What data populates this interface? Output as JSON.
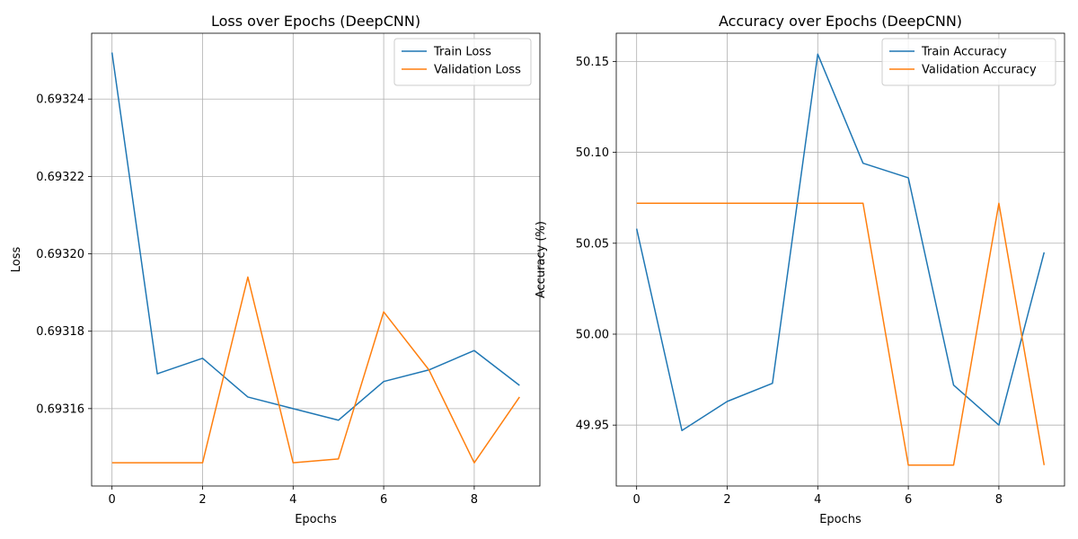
{
  "chart_data": [
    {
      "type": "line",
      "title": "Loss over Epochs (DeepCNN)",
      "xlabel": "Epochs",
      "ylabel": "Loss",
      "x": [
        0,
        1,
        2,
        3,
        4,
        5,
        6,
        7,
        8,
        9
      ],
      "xlim": [
        -0.45,
        9.45
      ],
      "ylim": [
        0.69314,
        0.693257
      ],
      "xticks": [
        0,
        2,
        4,
        6,
        8
      ],
      "xtick_labels": [
        "0",
        "2",
        "4",
        "6",
        "8"
      ],
      "yticks": [
        0.69316,
        0.69318,
        0.6932,
        0.69322,
        0.69324
      ],
      "ytick_labels": [
        "0.69316",
        "0.69318",
        "0.69320",
        "0.69322",
        "0.69324"
      ],
      "grid": true,
      "legend_position": "top-right",
      "series": [
        {
          "name": "Train Loss",
          "color": "#1f77b4",
          "values": [
            0.693252,
            0.693169,
            0.693173,
            0.693163,
            0.69316,
            0.693157,
            0.693167,
            0.69317,
            0.693175,
            0.693166
          ]
        },
        {
          "name": "Validation Loss",
          "color": "#ff7f0e",
          "values": [
            0.693146,
            0.693146,
            0.693146,
            0.693194,
            0.693146,
            0.693147,
            0.693185,
            0.69317,
            0.693146,
            0.693163
          ]
        }
      ]
    },
    {
      "type": "line",
      "title": "Accuracy over Epochs (DeepCNN)",
      "xlabel": "Epochs",
      "ylabel": "Accuracy (%)",
      "x": [
        0,
        1,
        2,
        3,
        4,
        5,
        6,
        7,
        8,
        9
      ],
      "xlim": [
        -0.45,
        9.45
      ],
      "ylim": [
        49.9165,
        50.1655
      ],
      "xticks": [
        0,
        2,
        4,
        6,
        8
      ],
      "xtick_labels": [
        "0",
        "2",
        "4",
        "6",
        "8"
      ],
      "yticks": [
        49.95,
        50.0,
        50.05,
        50.1,
        50.15
      ],
      "ytick_labels": [
        "49.95",
        "50.00",
        "50.05",
        "50.10",
        "50.15"
      ],
      "grid": true,
      "legend_position": "top-right",
      "series": [
        {
          "name": "Train Accuracy",
          "color": "#1f77b4",
          "values": [
            50.058,
            49.947,
            49.963,
            49.973,
            50.154,
            50.094,
            50.086,
            49.972,
            49.95,
            50.045
          ]
        },
        {
          "name": "Validation Accuracy",
          "color": "#ff7f0e",
          "values": [
            50.072,
            50.072,
            50.072,
            50.072,
            50.072,
            50.072,
            49.928,
            49.928,
            50.072,
            49.928
          ]
        }
      ]
    }
  ]
}
